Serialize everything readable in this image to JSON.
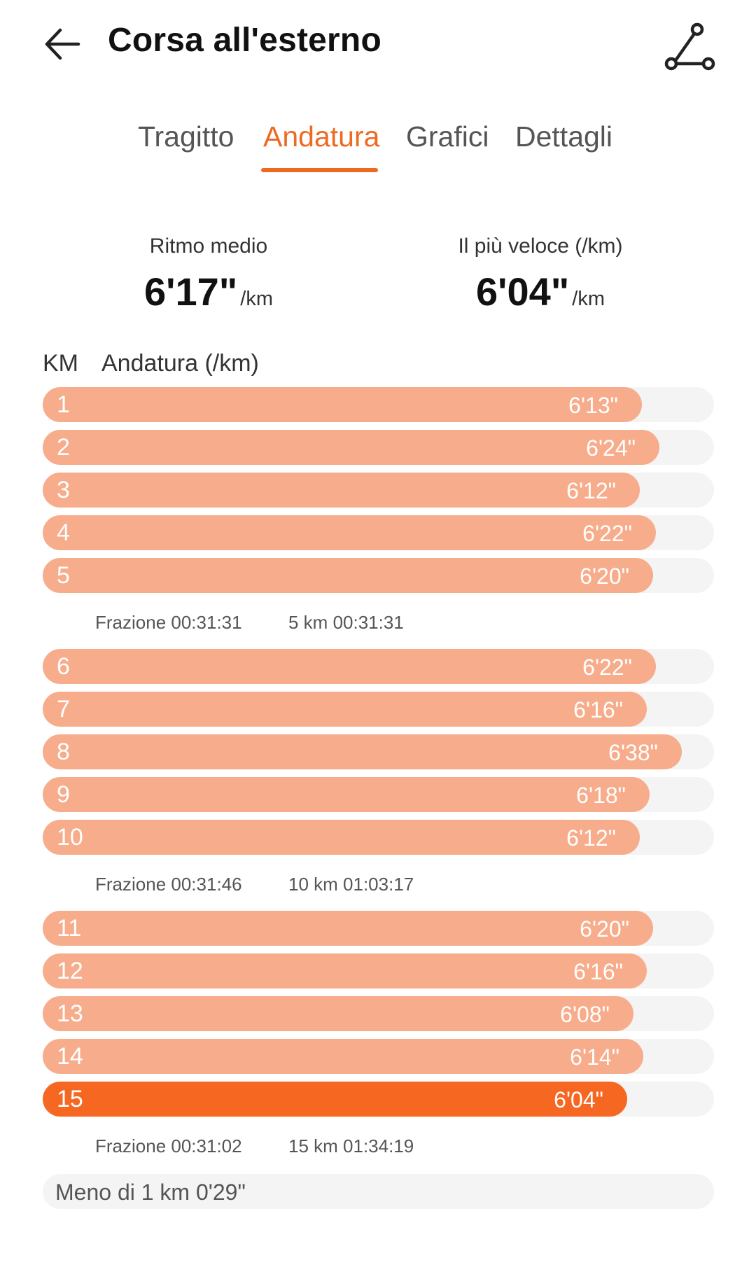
{
  "header": {
    "title": "Corsa all'esterno",
    "back_icon": "arrow-left-icon",
    "route_icon": "route-icon"
  },
  "tabs": [
    {
      "label": "Tragitto",
      "active": false
    },
    {
      "label": "Andatura",
      "active": true
    },
    {
      "label": "Grafici",
      "active": false
    },
    {
      "label": "Dettagli",
      "active": false
    }
  ],
  "summary": {
    "avg": {
      "label": "Ritmo medio",
      "value": "6'17\"",
      "unit": "/km"
    },
    "fastest": {
      "label": "Il più veloce (/km)",
      "value": "6'04\"",
      "unit": "/km"
    }
  },
  "table": {
    "col_km": "KM",
    "col_pace": "Andatura (/km)"
  },
  "pace_scale_max_seconds": 418,
  "groups": [
    {
      "rows": [
        {
          "km": "1",
          "pace": "6'13\"",
          "seconds": 373
        },
        {
          "km": "2",
          "pace": "6'24\"",
          "seconds": 384
        },
        {
          "km": "3",
          "pace": "6'12\"",
          "seconds": 372
        },
        {
          "km": "4",
          "pace": "6'22\"",
          "seconds": 382
        },
        {
          "km": "5",
          "pace": "6'20\"",
          "seconds": 380
        }
      ],
      "split_label": "Frazione 00:31:31",
      "cumulative_label": "5 km 00:31:31"
    },
    {
      "rows": [
        {
          "km": "6",
          "pace": "6'22\"",
          "seconds": 382
        },
        {
          "km": "7",
          "pace": "6'16\"",
          "seconds": 376
        },
        {
          "km": "8",
          "pace": "6'38\"",
          "seconds": 398
        },
        {
          "km": "9",
          "pace": "6'18\"",
          "seconds": 378
        },
        {
          "km": "10",
          "pace": "6'12\"",
          "seconds": 372
        }
      ],
      "split_label": "Frazione 00:31:46",
      "cumulative_label": "10 km 01:03:17"
    },
    {
      "rows": [
        {
          "km": "11",
          "pace": "6'20\"",
          "seconds": 380
        },
        {
          "km": "12",
          "pace": "6'16\"",
          "seconds": 376
        },
        {
          "km": "13",
          "pace": "6'08\"",
          "seconds": 368
        },
        {
          "km": "14",
          "pace": "6'14\"",
          "seconds": 374
        },
        {
          "km": "15",
          "pace": "6'04\"",
          "seconds": 364,
          "fastest": true
        }
      ],
      "split_label": "Frazione 00:31:02",
      "cumulative_label": "15 km 01:34:19"
    }
  ],
  "remainder": "Meno di 1 km 0'29\"",
  "colors": {
    "accent": "#ee6a21",
    "bar": "#f7ac8b",
    "bar_fastest": "#f66822",
    "track": "#f4f4f4"
  }
}
